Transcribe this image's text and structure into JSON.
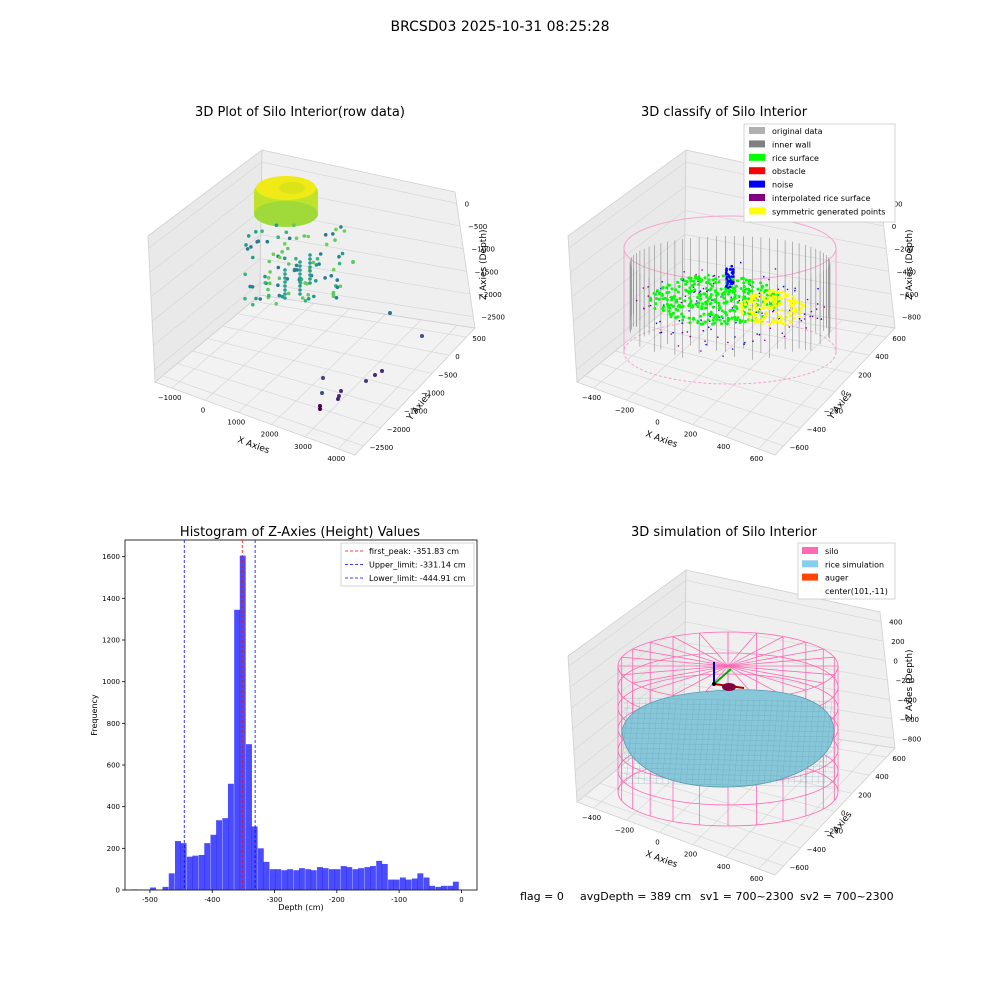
{
  "figure": {
    "suptitle": "BRCSD03 2025-10-31 08:25:28",
    "footer": {
      "flag": "flag = 0",
      "avg_depth": "avgDepth = 389 cm",
      "sv1": "sv1 = 700~2300",
      "sv2": "sv2 = 700~2300"
    }
  },
  "colors": {
    "histogram_bar": "#0000ff",
    "first_peak_line": "#ff0000",
    "limit_lines": "#0000ff",
    "silo": "#ff69b4",
    "rice_simulation": "#87ceeb",
    "auger": "#ff4500",
    "inner_wall": "#808080",
    "original_data": "#b0b0b0",
    "rice_surface": "#00ff00",
    "obstacle": "#ff0000",
    "noise": "#0000ff",
    "interpolated_rice_surface": "#800080",
    "symmetric_generated_points": "#ffff00"
  },
  "chart_data": [
    {
      "type": "scatter",
      "projection": "3d",
      "title": "3D Plot of Silo Interior(row data)",
      "xlabel": "X Axies",
      "ylabel": "Y Axies",
      "zlabel": "Z Axies (Depth)",
      "xticks": [
        "−1000",
        "0",
        "1000",
        "2000",
        "3000",
        "4000"
      ],
      "yticks": [
        "500",
        "0",
        "−500",
        "−1000",
        "−1500",
        "−2000",
        "−2500"
      ],
      "zticks": [
        "0",
        "−500",
        "−1000",
        "−1500",
        "−2000",
        "−2500"
      ],
      "colormap": "viridis"
    },
    {
      "type": "scatter",
      "projection": "3d",
      "title": "3D classify of Silo Interior",
      "xlabel": "X Axies",
      "ylabel": "Y Axies",
      "zlabel": "Z Axies (Depth)",
      "xticks": [
        "−400",
        "−200",
        "0",
        "200",
        "400",
        "600"
      ],
      "yticks": [
        "600",
        "400",
        "200",
        "0",
        "−200",
        "−400",
        "−600"
      ],
      "zticks": [
        "200",
        "0",
        "−200",
        "−400",
        "−600",
        "−800"
      ],
      "legend_position": "top-right",
      "legend": [
        {
          "label": "original data",
          "color": "#b0b0b0"
        },
        {
          "label": "inner wall",
          "color": "#808080"
        },
        {
          "label": "rice surface",
          "color": "#00ff00"
        },
        {
          "label": "obstacle",
          "color": "#ff0000"
        },
        {
          "label": "noise",
          "color": "#0000ff"
        },
        {
          "label": "interpolated rice surface",
          "color": "#800080"
        },
        {
          "label": "symmetric generated points",
          "color": "#ffff00"
        }
      ]
    },
    {
      "type": "bar",
      "title": "Histogram of Z-Axies (Height) Values",
      "xlabel": "Depth (cm)",
      "ylabel": "Frequency",
      "xlim": [
        -540,
        25
      ],
      "ylim": [
        0,
        1680
      ],
      "xticks": [
        -500,
        -400,
        -300,
        -200,
        -100,
        0
      ],
      "yticks": [
        0,
        200,
        400,
        600,
        800,
        1000,
        1200,
        1400,
        1600
      ],
      "bin_width": 9.5,
      "bins": [
        [
          -525,
          3
        ],
        [
          -515,
          2
        ],
        [
          -505,
          2
        ],
        [
          -495,
          12
        ],
        [
          -485,
          2
        ],
        [
          -475,
          15
        ],
        [
          -465,
          80
        ],
        [
          -455,
          235
        ],
        [
          -446,
          225
        ],
        [
          -436,
          160
        ],
        [
          -427,
          165
        ],
        [
          -417,
          168
        ],
        [
          -408,
          225
        ],
        [
          -398,
          265
        ],
        [
          -389,
          335
        ],
        [
          -379,
          345
        ],
        [
          -370,
          510
        ],
        [
          -360,
          1345
        ],
        [
          -351,
          1605
        ],
        [
          -341,
          700
        ],
        [
          -332,
          305
        ],
        [
          -322,
          200
        ],
        [
          -313,
          135
        ],
        [
          -303,
          100
        ],
        [
          -294,
          100
        ],
        [
          -284,
          95
        ],
        [
          -275,
          100
        ],
        [
          -265,
          95
        ],
        [
          -256,
          105
        ],
        [
          -246,
          100
        ],
        [
          -237,
          95
        ],
        [
          -227,
          110
        ],
        [
          -218,
          105
        ],
        [
          -208,
          100
        ],
        [
          -199,
          100
        ],
        [
          -189,
          115
        ],
        [
          -180,
          110
        ],
        [
          -170,
          100
        ],
        [
          -161,
          105
        ],
        [
          -151,
          110
        ],
        [
          -142,
          115
        ],
        [
          -132,
          140
        ],
        [
          -123,
          125
        ],
        [
          -113,
          50
        ],
        [
          -104,
          50
        ],
        [
          -94,
          60
        ],
        [
          -85,
          50
        ],
        [
          -75,
          55
        ],
        [
          -66,
          80
        ],
        [
          -56,
          60
        ],
        [
          -47,
          20
        ],
        [
          -37,
          15
        ],
        [
          -28,
          20
        ],
        [
          -18,
          20
        ],
        [
          -9,
          40
        ]
      ],
      "lines": [
        {
          "label": "first_peak: -351.83 cm",
          "x": -351.83,
          "color": "#ff0000"
        },
        {
          "label": "Upper_limit: -331.14 cm",
          "x": -331.14,
          "color": "#0000ff"
        },
        {
          "label": "Lower_limit: -444.91 cm",
          "x": -444.91,
          "color": "#0000ff"
        }
      ],
      "legend_position": "top-right"
    },
    {
      "type": "surface",
      "projection": "3d",
      "title": "3D simulation of Silo Interior",
      "xlabel": "X Axies",
      "ylabel": "Y Axies",
      "zlabel": "Z Axies (Depth)",
      "xticks": [
        "−400",
        "−200",
        "0",
        "200",
        "400",
        "600"
      ],
      "yticks": [
        "600",
        "400",
        "200",
        "0",
        "−200",
        "−400",
        "−600"
      ],
      "zticks": [
        "400",
        "200",
        "0",
        "−200",
        "−400",
        "−600",
        "−800"
      ],
      "legend_position": "top-right",
      "legend": [
        {
          "label": "silo",
          "color": "#ff69b4"
        },
        {
          "label": "rice simulation",
          "color": "#87ceeb"
        },
        {
          "label": "auger",
          "color": "#ff4500"
        },
        {
          "label": "center(101,-11)",
          "color": ""
        }
      ]
    }
  ]
}
